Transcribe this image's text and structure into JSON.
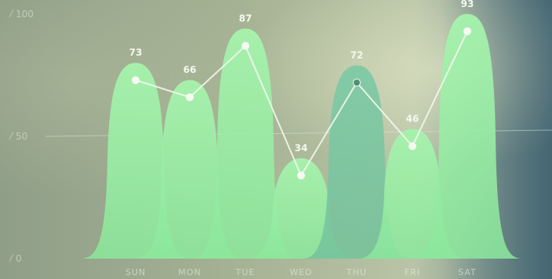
{
  "chart_data": {
    "type": "area",
    "title": "",
    "xlabel": "",
    "ylabel": "",
    "categories": [
      "SUN",
      "MON",
      "TUE",
      "WED",
      "THU",
      "FRI",
      "SAT"
    ],
    "values": [
      73,
      66,
      87,
      34,
      72,
      46,
      93
    ],
    "value_labels": [
      "73",
      "66",
      "87",
      "34",
      "72",
      "46",
      "93"
    ],
    "ylim": [
      0,
      100
    ],
    "yticks": [
      {
        "value": 0,
        "label": "0"
      },
      {
        "value": 50,
        "label": "50"
      },
      {
        "value": 100,
        "label": "100"
      }
    ],
    "grid": false,
    "legend": "none",
    "overlay_line": true,
    "highlighted_category": "THU",
    "colors": {
      "bar": "#9ff0a8",
      "bar_dark": "#6fcf8a",
      "highlight": "#7fc9a4",
      "line": "#f2f6ea",
      "reference_line": "#cfe6e0"
    }
  }
}
